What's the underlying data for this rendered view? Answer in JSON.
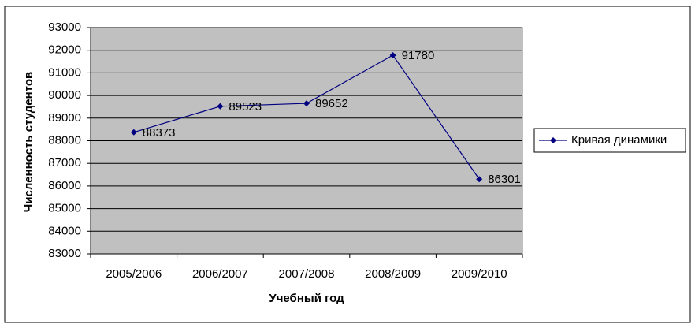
{
  "chart_data": {
    "type": "line",
    "x_label": "Учебный год",
    "y_label": "Численность студентов",
    "categories": [
      "2005/2006",
      "2006/2007",
      "2007/2008",
      "2008/2009",
      "2009/2010"
    ],
    "series": [
      {
        "name": "Кривая динамики",
        "color": "#000080",
        "values": [
          88373,
          89523,
          89652,
          91780,
          86301
        ]
      }
    ],
    "ylim": [
      83000,
      93000
    ],
    "yticks": [
      83000,
      84000,
      85000,
      86000,
      87000,
      88000,
      89000,
      90000,
      91000,
      92000,
      93000
    ],
    "grid": true,
    "data_labels": true,
    "legend": "right",
    "plot_background": "#c0c0c0"
  }
}
